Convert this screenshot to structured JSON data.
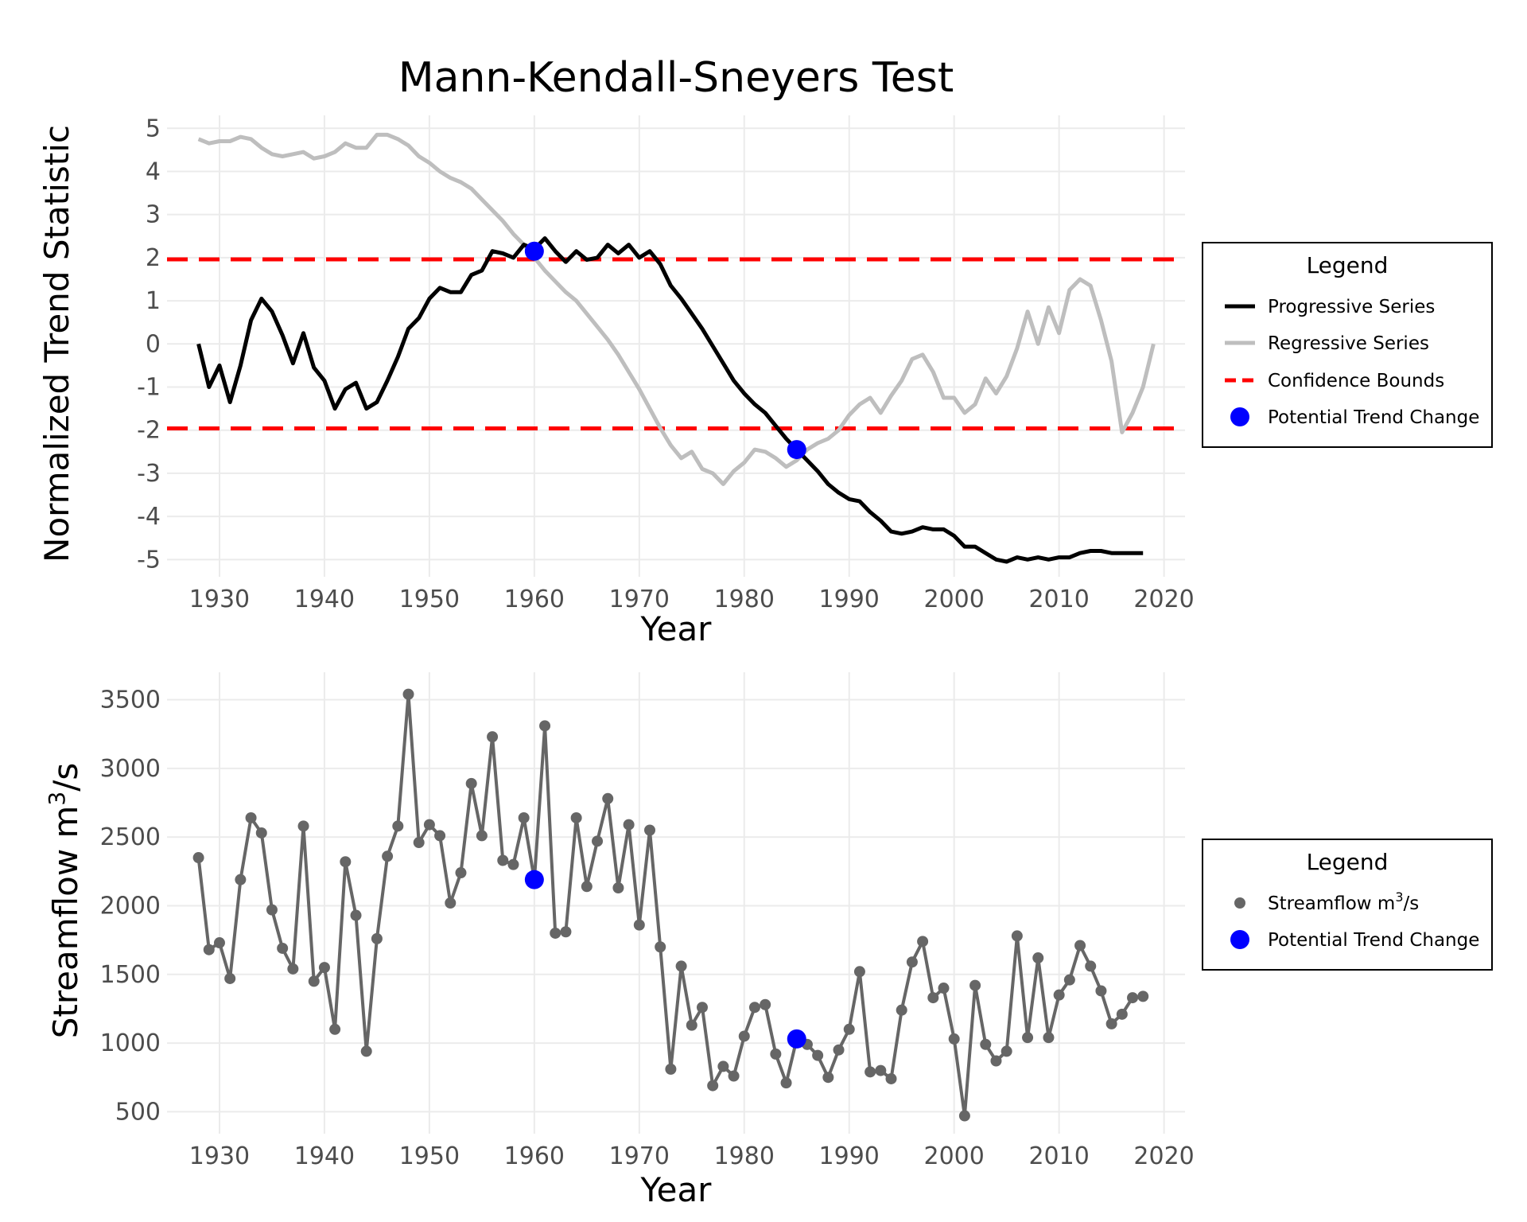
{
  "title": "Mann-Kendall-Sneyers Test",
  "colors": {
    "progressive": "#000000",
    "regressive": "#bebebe",
    "bounds": "#ff0000",
    "trend_change": "#0000ff",
    "streamflow": "#666666"
  },
  "chart_data": [
    {
      "type": "line",
      "xlabel": "Year",
      "ylabel": "Normalized Trend Statistic",
      "xlim": [
        1925,
        2022
      ],
      "ylim": [
        -5.4,
        5.3
      ],
      "xticks": [
        1930,
        1940,
        1950,
        1960,
        1970,
        1980,
        1990,
        2000,
        2010,
        2020
      ],
      "yticks": [
        5,
        4,
        3,
        2,
        1,
        0,
        -1,
        -2,
        -3,
        -4,
        -5
      ],
      "ytick_labels": [
        "5",
        "4",
        "3",
        "2",
        "1",
        "0",
        "-1",
        "-2",
        "-3",
        "-4",
        "-5"
      ],
      "x_start": 1928,
      "series": [
        {
          "name": "Progressive Series",
          "values": [
            0,
            -1.0,
            -0.5,
            -1.35,
            -0.5,
            0.55,
            1.05,
            0.75,
            0.2,
            -0.45,
            0.25,
            -0.55,
            -0.85,
            -1.5,
            -1.05,
            -0.9,
            -1.5,
            -1.35,
            -0.85,
            -0.3,
            0.35,
            0.6,
            1.05,
            1.3,
            1.2,
            1.2,
            1.6,
            1.7,
            2.15,
            2.1,
            2.0,
            2.3,
            2.2,
            2.45,
            2.15,
            1.9,
            2.15,
            1.95,
            2.0,
            2.3,
            2.1,
            2.3,
            2.0,
            2.15,
            1.85,
            1.35,
            1.05,
            0.7,
            0.35,
            -0.05,
            -0.45,
            -0.85,
            -1.15,
            -1.4,
            -1.6,
            -1.9,
            -2.2,
            -2.45,
            -2.7,
            -2.95,
            -3.25,
            -3.45,
            -3.6,
            -3.65,
            -3.9,
            -4.1,
            -4.35,
            -4.4,
            -4.35,
            -4.25,
            -4.3,
            -4.3,
            -4.45,
            -4.7,
            -4.7,
            -4.85,
            -5.0,
            -5.05,
            -4.95,
            -5.0,
            -4.95,
            -5.0,
            -4.95,
            -4.95,
            -4.85,
            -4.8,
            -4.8,
            -4.85,
            -4.85,
            -4.85,
            -4.85
          ]
        },
        {
          "name": "Regressive Series",
          "values": [
            4.75,
            4.65,
            4.7,
            4.7,
            4.8,
            4.75,
            4.55,
            4.4,
            4.35,
            4.4,
            4.45,
            4.3,
            4.35,
            4.45,
            4.65,
            4.55,
            4.55,
            4.85,
            4.85,
            4.75,
            4.6,
            4.35,
            4.2,
            4.0,
            3.85,
            3.75,
            3.6,
            3.35,
            3.1,
            2.85,
            2.55,
            2.3,
            2.0,
            1.7,
            1.45,
            1.2,
            1.0,
            0.7,
            0.4,
            0.1,
            -0.25,
            -0.65,
            -1.05,
            -1.5,
            -1.95,
            -2.35,
            -2.65,
            -2.5,
            -2.9,
            -3.0,
            -3.25,
            -2.95,
            -2.75,
            -2.45,
            -2.5,
            -2.65,
            -2.85,
            -2.7,
            -2.45,
            -2.3,
            -2.2,
            -2.0,
            -1.65,
            -1.4,
            -1.25,
            -1.6,
            -1.2,
            -0.85,
            -0.35,
            -0.25,
            -0.65,
            -1.25,
            -1.25,
            -1.6,
            -1.4,
            -0.8,
            -1.15,
            -0.75,
            -0.1,
            0.75,
            0.0,
            0.85,
            0.25,
            1.25,
            1.5,
            1.35,
            0.55,
            -0.4,
            -2.05,
            -1.6,
            -1.0,
            0.0
          ]
        }
      ],
      "bounds": {
        "name": "Confidence Bounds",
        "values": [
          1.96,
          -1.96
        ]
      },
      "markers": {
        "name": "Potential Trend Change",
        "x": [
          1960,
          1985
        ],
        "y": [
          2.15,
          -2.45
        ]
      },
      "legend": {
        "title": "Legend",
        "position": "right",
        "entries": [
          "Progressive Series",
          "Regressive Series",
          "Confidence Bounds",
          "Potential Trend Change"
        ]
      }
    },
    {
      "type": "line",
      "xlabel": "Year",
      "ylabel": "Streamflow m",
      "ylabel_sup": "3",
      "ylabel_suffix": "/s",
      "xlim": [
        1925,
        2022
      ],
      "ylim": [
        340,
        3700
      ],
      "xticks": [
        1930,
        1940,
        1950,
        1960,
        1970,
        1980,
        1990,
        2000,
        2010,
        2020
      ],
      "yticks": [
        3500,
        3000,
        2500,
        2000,
        1500,
        1000,
        500
      ],
      "ytick_labels": [
        "3500",
        "3000",
        "2500",
        "2000",
        "1500",
        "1000",
        "500"
      ],
      "x_start": 1928,
      "series": [
        {
          "name": "Streamflow m3/s",
          "values": [
            2350,
            1680,
            1730,
            1470,
            2190,
            2640,
            2530,
            1970,
            1690,
            1540,
            2580,
            1450,
            1550,
            1100,
            2320,
            1930,
            940,
            1760,
            2360,
            2580,
            3540,
            2460,
            2590,
            2510,
            2020,
            2240,
            2890,
            2510,
            3230,
            2330,
            2300,
            2640,
            2190,
            3310,
            1800,
            1810,
            2640,
            2140,
            2470,
            2780,
            2130,
            2590,
            1860,
            2550,
            1700,
            810,
            1560,
            1130,
            1260,
            690,
            830,
            760,
            1050,
            1260,
            1280,
            920,
            710,
            1030,
            990,
            910,
            750,
            950,
            1100,
            1520,
            790,
            800,
            740,
            1240,
            1590,
            1740,
            1330,
            1400,
            1030,
            470,
            1420,
            990,
            870,
            940,
            1780,
            1040,
            1620,
            1040,
            1350,
            1460,
            1710,
            1560,
            1380,
            1140,
            1210,
            1330,
            1340
          ]
        }
      ],
      "markers": {
        "name": "Potential Trend Change",
        "x": [
          1960,
          1985
        ],
        "y": [
          2190,
          1030
        ]
      },
      "legend": {
        "title": "Legend",
        "position": "right",
        "entries": [
          "Streamflow m3/s",
          "Potential Trend Change"
        ],
        "entry_text": {
          "main": "Streamflow m",
          "sup": "3",
          "suffix": "/s"
        }
      }
    }
  ]
}
